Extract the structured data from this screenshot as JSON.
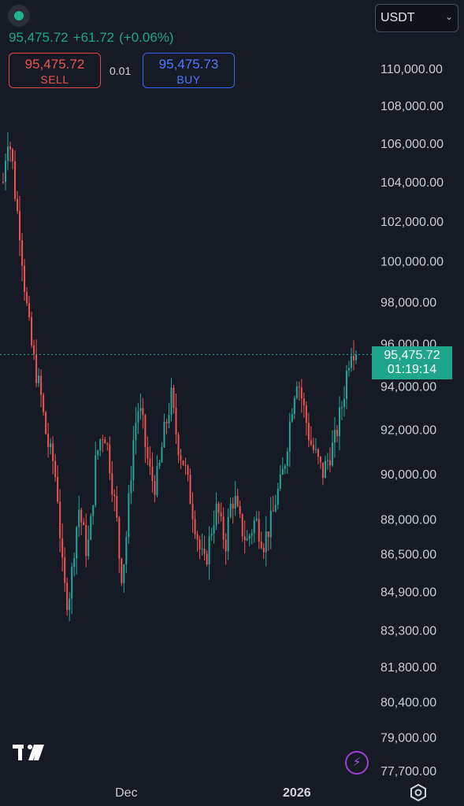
{
  "header": {
    "last_price": "95,475.72",
    "change": "+61.72",
    "change_pct": "(+0.06%)",
    "currency": "USDT"
  },
  "trade": {
    "sell_price": "95,475.72",
    "sell_label": "SELL",
    "spread": "0.01",
    "buy_price": "95,475.73",
    "buy_label": "BUY"
  },
  "current_price_label": {
    "price": "95,475.72",
    "countdown": "01:19:14"
  },
  "colors": {
    "background": "#161a25",
    "up": "#26a69a",
    "down": "#ef5350",
    "accent": "#1fa58a"
  },
  "icons": [
    "status-dot-icon",
    "chevron-down-icon",
    "tradingview-logo-icon",
    "flash-icon",
    "settings-hex-icon"
  ],
  "chart_data": {
    "type": "candlestick",
    "title": "",
    "xlabel": "",
    "ylabel": "",
    "price_scale": "log",
    "ylim": [
      77000,
      112000
    ],
    "y_ticks": [
      "110,000.00",
      "108,000.00",
      "106,000.00",
      "104,000.00",
      "102,000.00",
      "100,000.00",
      "98,000.00",
      "96,000.00",
      "94,000.00",
      "92,000.00",
      "90,000.00",
      "88,000.00",
      "86,500.00",
      "84,900.00",
      "83,300.00",
      "81,800.00",
      "80,400.00",
      "79,000.00",
      "77,700.00"
    ],
    "x_ticks": [
      {
        "label": "Dec",
        "index": 52,
        "bold": false
      },
      {
        "label": "2026",
        "index": 124,
        "bold": true
      }
    ],
    "current_price": 95475.72,
    "series_anchor_prices": [
      104000,
      106500,
      105500,
      103000,
      101500,
      99000,
      97000,
      95500,
      94500,
      93500,
      92000,
      91000,
      90500,
      89000,
      86000,
      84500,
      85000,
      87000,
      88500,
      87500,
      86500,
      88000,
      90500,
      91500,
      92000,
      91000,
      89500,
      88000,
      85500,
      86500,
      89000,
      91500,
      93000,
      92500,
      91000,
      90000,
      89500,
      90000,
      91500,
      92500,
      93500,
      92000,
      91000,
      90500,
      89500,
      88500,
      87500,
      86500,
      86000,
      87000,
      88000,
      88500,
      87500,
      87000,
      88500,
      89000,
      88000,
      87500,
      87000,
      87500,
      88000,
      87500,
      87000,
      87500,
      88000,
      89000,
      89500,
      90500,
      92000,
      93500,
      94500,
      93500,
      92500,
      91500,
      91000,
      90500,
      90000,
      90500,
      91000,
      91500,
      92500,
      93500,
      95000,
      96000,
      95475.72
    ]
  }
}
